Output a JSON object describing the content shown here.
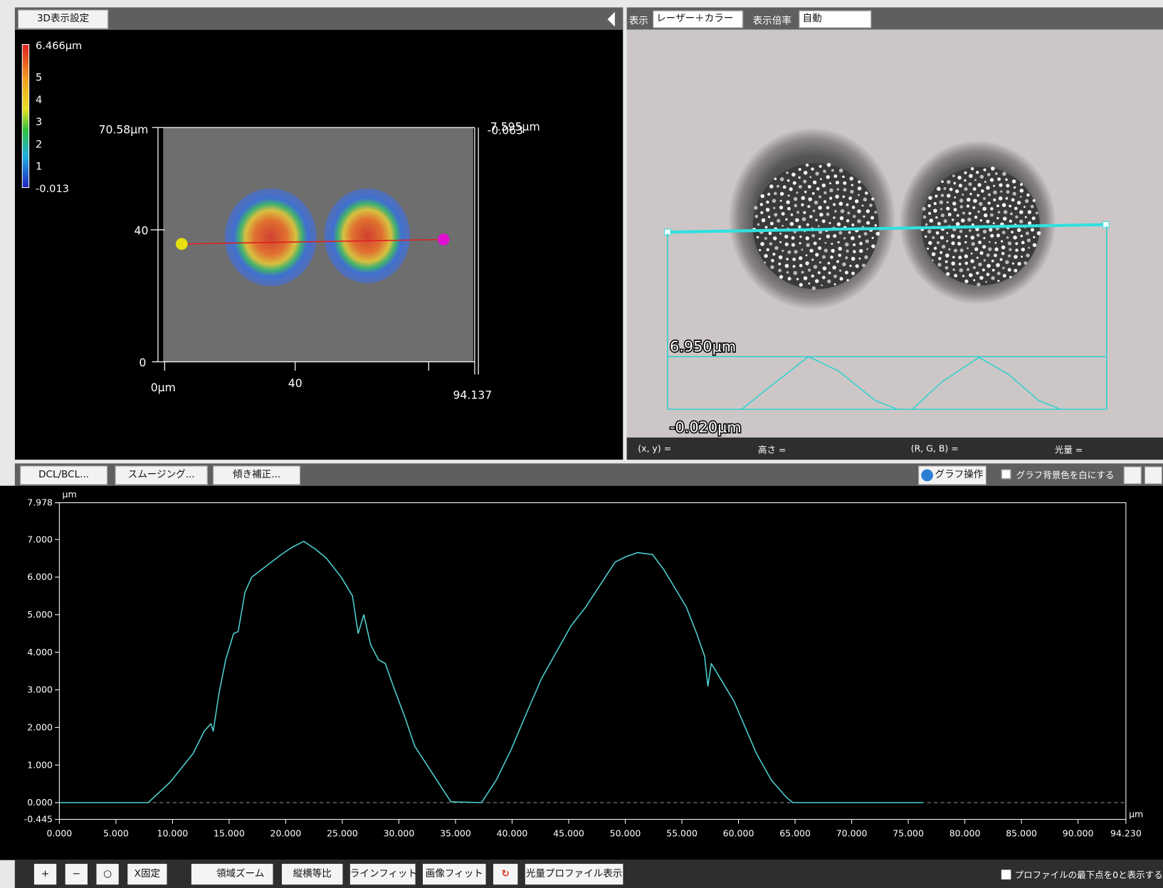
{
  "view3d": {
    "button": "3D表示設定",
    "colorbar": {
      "max": "6.466μm",
      "ticks": [
        "5",
        "4",
        "3",
        "2",
        "1"
      ],
      "min": "-0.013"
    },
    "axis_labels": {
      "y_top": "70.58μm",
      "y_mid": "40",
      "y_zero": "0",
      "x_zero": "0μm",
      "x_mid": "40",
      "x_end": "94.137",
      "z_top": "7.595μm",
      "z_zero": "-0.063"
    }
  },
  "image_view": {
    "display_label": "表示",
    "display_mode": "レーザー＋カラー",
    "zoom_label": "表示倍率",
    "zoom_mode": "自動",
    "profile_max": "6.950μm",
    "profile_min": "-0.020μm",
    "status": [
      "(x, y) =",
      "高さ =",
      "(R, G, B) =",
      "光量 ="
    ]
  },
  "graph_toolbar": {
    "buttons": [
      "DCL/BCL...",
      "スムージング...",
      "傾き補正..."
    ],
    "graph_ops": "グラフ操作",
    "bg_white": "グラフ背景色を白にする"
  },
  "chart_data": {
    "type": "line",
    "ylabel": "μm",
    "xlabel": "μm",
    "color": "#4fd0d0",
    "x": [
      0,
      7.86,
      9.8,
      11.8,
      12.8,
      13.4,
      13.6,
      14.1,
      14.7,
      15.4,
      15.8,
      16.4,
      17.0,
      18.3,
      19.6,
      20.6,
      21.6,
      22.6,
      23.6,
      24.9,
      25.9,
      26.4,
      26.9,
      27.5,
      28.2,
      28.8,
      29.5,
      30.5,
      31.4,
      32.7,
      34.1,
      34.6,
      37.3,
      38.6,
      39.9,
      41.3,
      42.6,
      43.9,
      45.2,
      46.5,
      47.8,
      49.1,
      50.1,
      51.1,
      52.4,
      53.4,
      54.4,
      55.4,
      56.3,
      57.0,
      57.3,
      57.6,
      58.6,
      59.6,
      60.6,
      61.6,
      62.9,
      64.2,
      64.8,
      76.3
    ],
    "values": [
      0,
      0,
      0.55,
      1.3,
      1.9,
      2.1,
      1.9,
      2.9,
      3.8,
      4.5,
      4.55,
      5.6,
      6.0,
      6.3,
      6.6,
      6.8,
      6.95,
      6.75,
      6.5,
      6.0,
      5.5,
      4.5,
      5.0,
      4.2,
      3.8,
      3.7,
      3.1,
      2.3,
      1.5,
      0.9,
      0.25,
      0.02,
      0,
      0.6,
      1.4,
      2.4,
      3.3,
      4.0,
      4.7,
      5.2,
      5.8,
      6.4,
      6.55,
      6.65,
      6.6,
      6.2,
      5.7,
      5.2,
      4.5,
      3.9,
      3.1,
      3.7,
      3.2,
      2.7,
      2.0,
      1.3,
      0.6,
      0.15,
      0,
      0
    ],
    "xlim": [
      0,
      94.23
    ],
    "ylim": [
      -0.445,
      7.978
    ],
    "yticks": [
      -0.445,
      {
        "value": 0,
        "label": "0.000"
      },
      {
        "value": 1,
        "label": "1.000"
      },
      {
        "value": 2,
        "label": "2.000"
      },
      {
        "value": 3,
        "label": "3.000"
      },
      {
        "value": 4,
        "label": "4.000"
      },
      {
        "value": 5,
        "label": "5.000"
      },
      {
        "value": 6,
        "label": "6.000"
      },
      {
        "value": 7,
        "label": "7.000"
      },
      7.978
    ],
    "xticks": [
      {
        "value": 0,
        "label": "0.000"
      },
      {
        "value": 5,
        "label": "5.000"
      },
      {
        "value": 10,
        "label": "10.000"
      },
      {
        "value": 15,
        "label": "15.000"
      },
      {
        "value": 20,
        "label": "20.000"
      },
      {
        "value": 25,
        "label": "25.000"
      },
      {
        "value": 30,
        "label": "30.000"
      },
      {
        "value": 35,
        "label": "35.000"
      },
      {
        "value": 40,
        "label": "40.000"
      },
      {
        "value": 45,
        "label": "45.000"
      },
      {
        "value": 50,
        "label": "50.000"
      },
      {
        "value": 55,
        "label": "55.000"
      },
      {
        "value": 60,
        "label": "60.000"
      },
      {
        "value": 65,
        "label": "65.000"
      },
      {
        "value": 70,
        "label": "70.000"
      },
      {
        "value": 75,
        "label": "75.000"
      },
      {
        "value": 80,
        "label": "80.000"
      },
      {
        "value": 85,
        "label": "85.000"
      },
      {
        "value": 90,
        "label": "90.000"
      },
      {
        "value": 94.23,
        "label": "94.230"
      }
    ]
  },
  "bottom_toolbar": {
    "buttons": [
      "X固定",
      "領域ズーム",
      "縦横等比",
      "ラインフィット",
      "画像フィット",
      "光量プロファイル表示"
    ],
    "checkbox": "プロファイルの最下点を0と表示する"
  }
}
